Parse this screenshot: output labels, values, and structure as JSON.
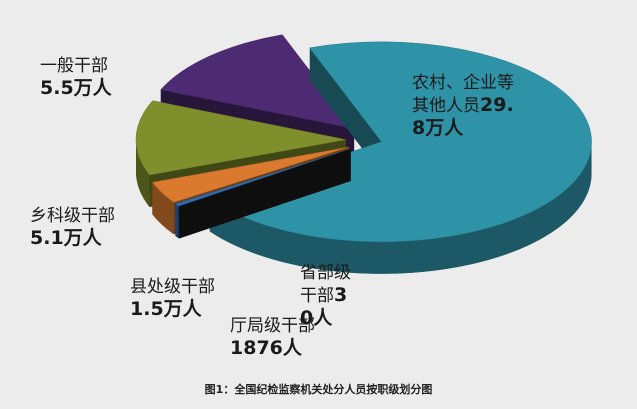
{
  "chart_data": {
    "type": "pie",
    "title": "图1：全国纪检监察机关处分人员按职级划分图",
    "categories": [
      "农村、企业等其他人员",
      "省部级干部",
      "厅局级干部",
      "县处级干部",
      "乡科级干部",
      "一般干部"
    ],
    "values": [
      298000,
      30,
      1876,
      15000,
      51000,
      55000
    ],
    "value_labels": [
      "29.8万人",
      "30人",
      "1876人",
      "1.5万人",
      "5.1万人",
      "5.5万人"
    ],
    "colors": [
      "#2f93a8",
      "#1c1c1c",
      "#2d6db3",
      "#d97a2e",
      "#7f8f2c",
      "#4d2b72"
    ]
  }
}
